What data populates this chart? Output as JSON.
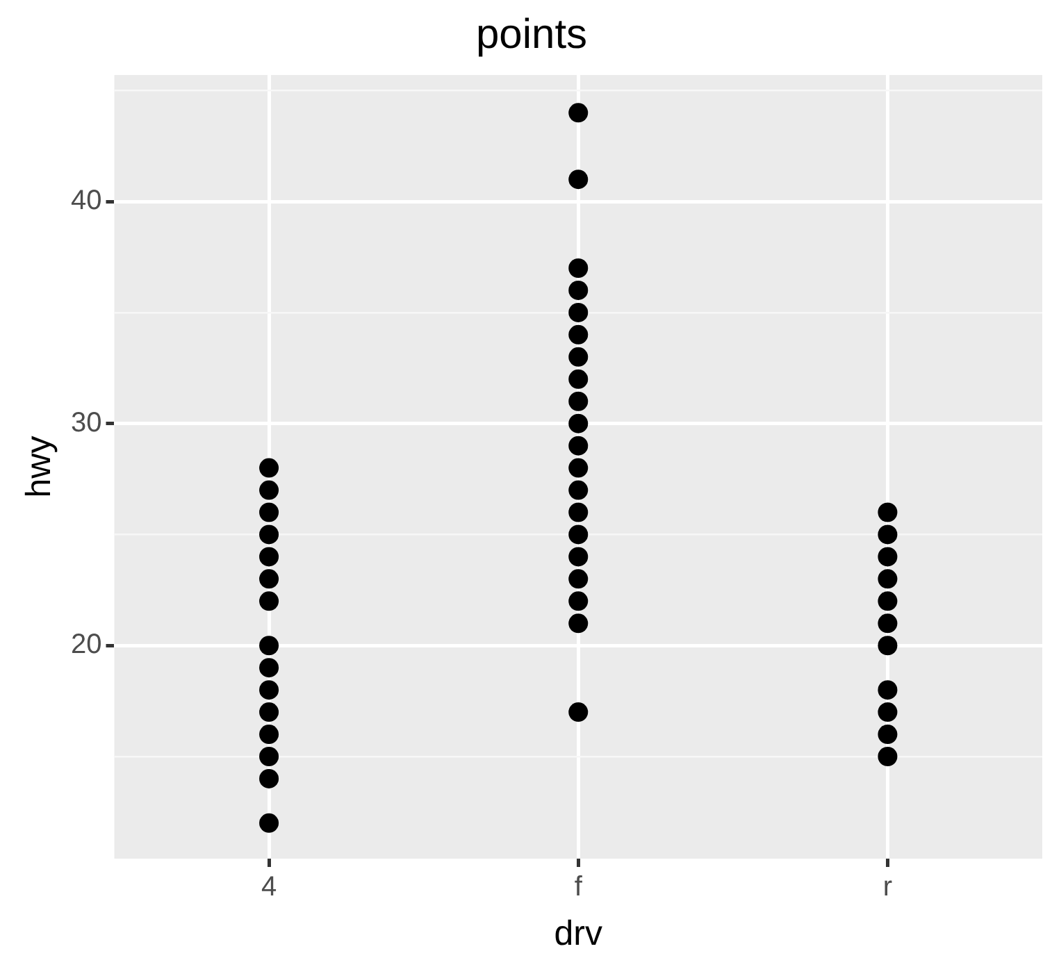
{
  "chart_data": {
    "type": "scatter",
    "title": "points",
    "xlabel": "drv",
    "ylabel": "hwy",
    "categories": [
      "4",
      "f",
      "r"
    ],
    "series": [
      {
        "color": "#000000",
        "x": [
          "4",
          "4",
          "4",
          "4",
          "4",
          "4",
          "4",
          "4",
          "4",
          "4",
          "4",
          "4",
          "4",
          "4",
          "4",
          "f",
          "f",
          "f",
          "f",
          "f",
          "f",
          "f",
          "f",
          "f",
          "f",
          "f",
          "f",
          "f",
          "f",
          "f",
          "f",
          "f",
          "f",
          "f",
          "f",
          "r",
          "r",
          "r",
          "r",
          "r",
          "r",
          "r",
          "r",
          "r",
          "r",
          "r"
        ],
        "values": [
          12,
          14,
          15,
          16,
          17,
          18,
          19,
          20,
          22,
          23,
          24,
          25,
          26,
          27,
          28,
          17,
          21,
          22,
          23,
          24,
          25,
          26,
          27,
          28,
          29,
          30,
          31,
          32,
          33,
          34,
          35,
          36,
          37,
          41,
          44,
          15,
          16,
          17,
          18,
          20,
          21,
          22,
          23,
          24,
          25,
          26
        ]
      }
    ],
    "ylim": [
      10.4,
      45.7
    ],
    "yticks": [
      {
        "value": 15,
        "label": null
      },
      20,
      {
        "value": 25,
        "label": null
      },
      30,
      {
        "value": 35,
        "label": null
      },
      40,
      {
        "value": 45,
        "label": null
      }
    ],
    "grid": true,
    "marker": "circle",
    "legend": false
  }
}
